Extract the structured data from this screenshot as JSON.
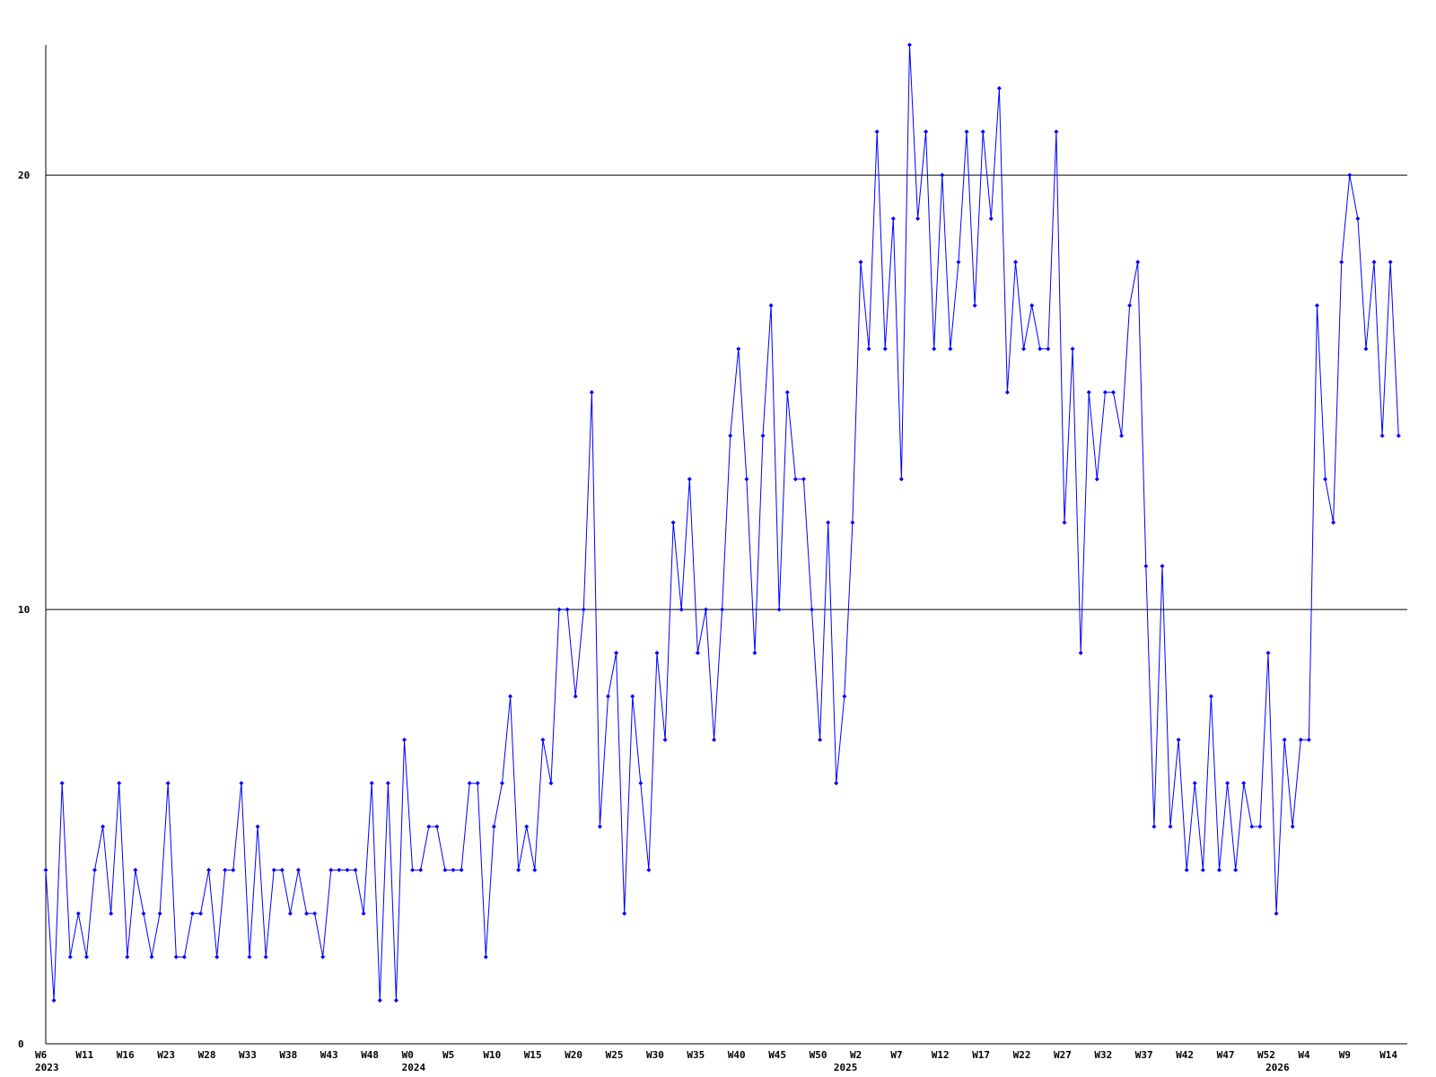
{
  "chart_data": {
    "type": "line",
    "categories": [
      "W6",
      null,
      null,
      null,
      null,
      "W11",
      null,
      null,
      null,
      null,
      "W16",
      null,
      null,
      null,
      null,
      "W23",
      null,
      null,
      null,
      null,
      "W28",
      null,
      null,
      null,
      null,
      "W33",
      null,
      null,
      null,
      null,
      "W38",
      null,
      null,
      null,
      null,
      "W43",
      null,
      null,
      null,
      null,
      "W48",
      null,
      null,
      null,
      null,
      "W0",
      null,
      null,
      null,
      null,
      "W5",
      null,
      null,
      null,
      null,
      "W10",
      null,
      null,
      null,
      null,
      "W15",
      null,
      null,
      null,
      null,
      "W20",
      null,
      null,
      null,
      null,
      "W25",
      null,
      null,
      null,
      null,
      "W30",
      null,
      null,
      null,
      null,
      "W35",
      null,
      null,
      null,
      null,
      "W40",
      null,
      null,
      null,
      null,
      "W45",
      null,
      null,
      null,
      null,
      "W50",
      null,
      null,
      null,
      null,
      "W2",
      null,
      null,
      null,
      null,
      "W7",
      null,
      null,
      null,
      null,
      "W12",
      null,
      null,
      null,
      null,
      "W17",
      null,
      null,
      null,
      null,
      "W22",
      null,
      null,
      null,
      null,
      "W27",
      null,
      null,
      null,
      null,
      "W32",
      null,
      null,
      null,
      null,
      "W37",
      null,
      null,
      null,
      null,
      "W42",
      null,
      null,
      null,
      null,
      "W47",
      null,
      null,
      null,
      null,
      "W52",
      null,
      null,
      null,
      null,
      "W4",
      null,
      null,
      null,
      null,
      "W9",
      null,
      null,
      null,
      null,
      "W14",
      null
    ],
    "years": [
      "2023",
      null,
      null,
      null,
      null,
      null,
      null,
      null,
      null,
      null,
      null,
      null,
      null,
      null,
      null,
      null,
      null,
      null,
      null,
      null,
      null,
      null,
      null,
      null,
      null,
      null,
      null,
      null,
      null,
      null,
      null,
      null,
      null,
      null,
      null,
      null,
      null,
      null,
      null,
      null,
      null,
      null,
      null,
      null,
      null,
      "2024",
      null,
      null,
      null,
      null,
      null,
      null,
      null,
      null,
      null,
      null,
      null,
      null,
      null,
      null,
      null,
      null,
      null,
      null,
      null,
      null,
      null,
      null,
      null,
      null,
      null,
      null,
      null,
      null,
      null,
      null,
      null,
      null,
      null,
      null,
      null,
      null,
      null,
      null,
      null,
      null,
      null,
      null,
      null,
      null,
      null,
      null,
      null,
      null,
      null,
      null,
      null,
      null,
      "2025",
      null,
      null,
      null,
      null,
      null,
      null,
      null,
      null,
      null,
      null,
      null,
      null,
      null,
      null,
      null,
      null,
      null,
      null,
      null,
      null,
      null,
      null,
      null,
      null,
      null,
      null,
      null,
      null,
      null,
      null,
      null,
      null,
      null,
      null,
      null,
      null,
      null,
      null,
      null,
      null,
      null,
      null,
      null,
      null,
      null,
      null,
      null,
      null,
      null,
      null,
      null,
      null,
      "2026",
      null,
      null,
      null,
      null,
      null,
      null,
      null,
      null,
      null,
      null,
      null,
      null,
      null,
      null,
      null
    ],
    "series": [
      {
        "color": "#0000ff",
        "values": [
          4,
          1,
          6,
          2,
          3,
          2,
          4,
          5,
          3,
          6,
          2,
          4,
          3,
          2,
          3,
          6,
          2,
          2,
          3,
          3,
          4,
          2,
          4,
          4,
          6,
          2,
          5,
          2,
          4,
          4,
          3,
          4,
          3,
          3,
          2,
          4,
          4,
          4,
          4,
          3,
          6,
          1,
          6,
          1,
          7,
          4,
          4,
          5,
          5,
          4,
          4,
          4,
          6,
          6,
          2,
          5,
          6,
          8,
          4,
          5,
          4,
          7,
          6,
          10,
          10,
          8,
          10,
          15,
          5,
          8,
          9,
          3,
          8,
          6,
          4,
          9,
          7,
          12,
          10,
          13,
          9,
          10,
          7,
          10,
          14,
          16,
          13,
          9,
          14,
          17,
          10,
          15,
          13,
          13,
          10,
          7,
          12,
          6,
          8,
          12,
          18,
          16,
          21,
          16,
          19,
          13,
          23,
          19,
          21,
          16,
          20,
          16,
          18,
          21,
          17,
          21,
          19,
          22,
          15,
          18,
          16,
          17,
          16,
          16,
          21,
          12,
          16,
          9,
          15,
          13,
          15,
          15,
          14,
          17,
          18,
          11,
          5,
          11,
          5,
          7,
          4,
          6,
          4,
          8,
          4,
          6,
          4,
          6,
          5,
          5,
          9,
          3,
          7,
          5,
          7,
          7,
          17,
          13,
          12,
          18,
          20,
          19,
          16,
          18,
          14,
          18,
          14
        ]
      }
    ],
    "ylim": [
      0,
      23
    ],
    "yticks": [
      0,
      10,
      20
    ],
    "grid": true
  }
}
